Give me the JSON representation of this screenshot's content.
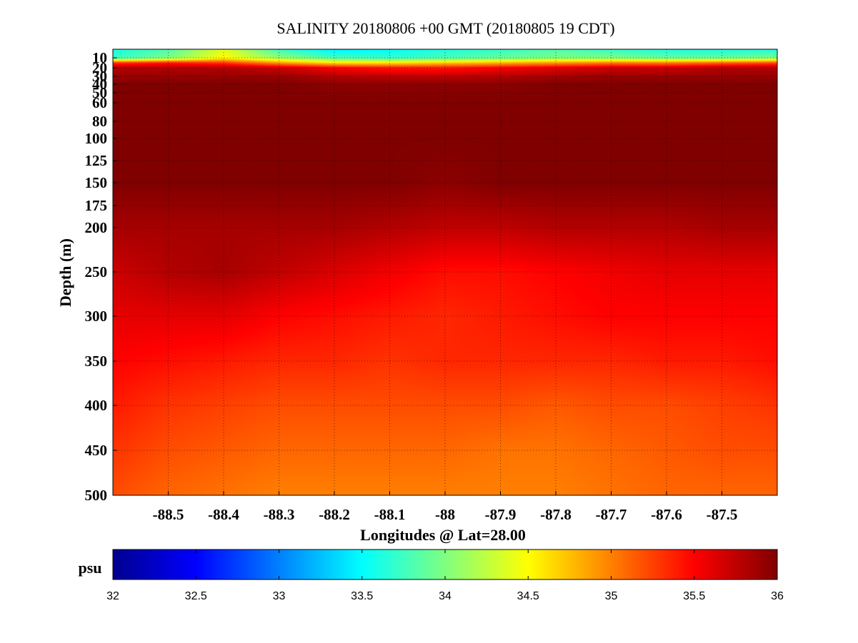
{
  "chart_data": {
    "type": "heatmap",
    "title": "SALINITY 20180806 +00 GMT (20180805 19 CDT)",
    "xlabel": "Longitudes @ Lat=28.00",
    "ylabel": "Depth (m)",
    "xlim": [
      -88.6,
      -87.4
    ],
    "ylim": [
      500,
      0
    ],
    "y_scale": "piecewise (non-linear depth axis)",
    "x_ticks": [
      -88.5,
      -88.4,
      -88.3,
      -88.2,
      -88.1,
      -88,
      -87.9,
      -87.8,
      -87.7,
      -87.6,
      -87.5
    ],
    "x_tick_labels": [
      "-88.5",
      "-88.4",
      "-88.3",
      "-88.2",
      "-88.1",
      "-88",
      "-87.9",
      "-87.8",
      "-87.7",
      "-87.6",
      "-87.5"
    ],
    "y_ticks": [
      10,
      20,
      30,
      40,
      50,
      60,
      80,
      100,
      125,
      150,
      175,
      200,
      250,
      300,
      350,
      400,
      450,
      500
    ],
    "y_tick_labels": [
      "10",
      "20",
      "30",
      "40",
      "50",
      "60",
      "80",
      "100",
      "125",
      "150",
      "175",
      "200",
      "250",
      "300",
      "350",
      "400",
      "450",
      "500"
    ],
    "grid": true,
    "colormap": "jet",
    "clim": [
      32,
      36
    ],
    "colorbar": {
      "label": "psu",
      "placement": "bottom",
      "ticks": [
        32,
        32.5,
        33,
        33.5,
        34,
        34.5,
        35,
        35.5,
        36
      ],
      "tick_labels": [
        "32",
        "32.5",
        "33",
        "33.5",
        "34",
        "34.5",
        "35",
        "35.5",
        "36"
      ]
    },
    "grid_x": [
      -88.6,
      -88.5,
      -88.4,
      -88.3,
      -88.2,
      -88.1,
      -88.0,
      -87.9,
      -87.8,
      -87.7,
      -87.6,
      -87.5,
      -87.4
    ],
    "grid_depth": [
      0,
      10,
      15,
      20,
      30,
      40,
      60,
      100,
      150,
      200,
      250,
      300,
      350,
      400,
      450,
      500
    ],
    "salinity": [
      [
        33.6,
        33.8,
        34.4,
        33.7,
        33.4,
        33.5,
        33.6,
        33.7,
        33.8,
        33.7,
        33.6,
        33.6,
        33.6
      ],
      [
        33.7,
        34.0,
        34.5,
        34.1,
        33.8,
        33.7,
        33.8,
        33.9,
        34.0,
        34.0,
        33.9,
        33.9,
        34.0
      ],
      [
        35.3,
        35.4,
        35.3,
        34.9,
        34.6,
        34.6,
        34.7,
        34.8,
        34.9,
        35.0,
        35.0,
        35.1,
        35.2
      ],
      [
        35.8,
        35.8,
        35.8,
        35.7,
        35.5,
        35.4,
        35.4,
        35.5,
        35.6,
        35.7,
        35.7,
        35.8,
        35.8
      ],
      [
        35.9,
        35.9,
        35.9,
        35.9,
        35.8,
        35.75,
        35.75,
        35.8,
        35.85,
        35.9,
        35.9,
        35.9,
        35.9
      ],
      [
        36.0,
        36.0,
        36.0,
        36.0,
        35.95,
        35.95,
        35.95,
        35.95,
        36.0,
        36.0,
        36.0,
        36.0,
        36.0
      ],
      [
        36.0,
        36.0,
        36.0,
        36.0,
        36.0,
        36.0,
        36.0,
        36.0,
        36.0,
        36.0,
        36.0,
        36.0,
        36.0
      ],
      [
        36.0,
        36.0,
        36.0,
        36.0,
        36.0,
        36.0,
        36.0,
        36.0,
        36.0,
        36.0,
        36.0,
        36.0,
        36.0
      ],
      [
        36.0,
        36.0,
        36.0,
        36.0,
        36.0,
        36.0,
        35.95,
        36.0,
        36.0,
        36.0,
        36.0,
        36.0,
        36.0
      ],
      [
        35.85,
        35.85,
        35.85,
        35.85,
        35.85,
        35.8,
        35.75,
        35.75,
        35.8,
        35.8,
        35.8,
        35.85,
        35.85
      ],
      [
        35.7,
        35.8,
        35.85,
        35.75,
        35.65,
        35.55,
        35.45,
        35.45,
        35.5,
        35.55,
        35.6,
        35.6,
        35.6
      ],
      [
        35.6,
        35.6,
        35.6,
        35.5,
        35.45,
        35.4,
        35.35,
        35.4,
        35.45,
        35.5,
        35.5,
        35.5,
        35.5
      ],
      [
        35.5,
        35.45,
        35.4,
        35.35,
        35.35,
        35.3,
        35.35,
        35.35,
        35.35,
        35.35,
        35.4,
        35.4,
        35.45
      ],
      [
        35.4,
        35.3,
        35.25,
        35.2,
        35.2,
        35.2,
        35.2,
        35.2,
        35.15,
        35.2,
        35.2,
        35.25,
        35.3
      ],
      [
        35.3,
        35.2,
        35.15,
        35.1,
        35.1,
        35.1,
        35.1,
        35.05,
        35.05,
        35.1,
        35.15,
        35.2,
        35.2
      ],
      [
        35.2,
        35.1,
        35.05,
        35.0,
        35.0,
        35.0,
        35.0,
        35.0,
        35.0,
        35.05,
        35.1,
        35.1,
        35.1
      ]
    ]
  }
}
